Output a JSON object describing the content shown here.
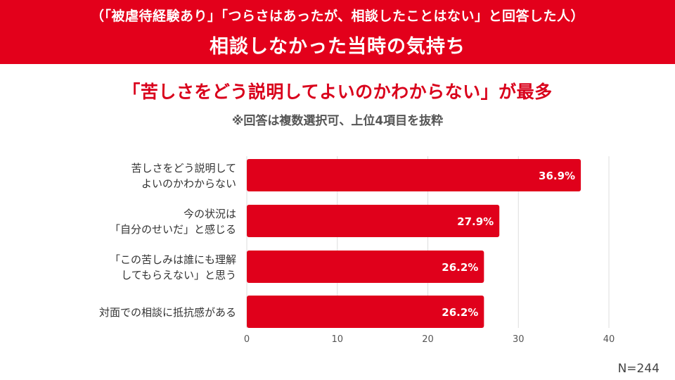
{
  "header": {
    "subtitle": "（「被虐待経験あり」「つらさはあったが、相談したことはない」と回答した人）",
    "title": "相談しなかった当時の気持ち"
  },
  "headline": "「苦しさをどう説明してよいのかわからない」が最多",
  "note": "※回答は複数選択可、上位4項目を抜粋",
  "sample_size": "N=244",
  "colors": {
    "header_bg": "#e3001b",
    "bar": "#e0001b",
    "headline": "#d9001b"
  },
  "chart_data": {
    "type": "bar",
    "orientation": "horizontal",
    "categories": [
      [
        "苦しさをどう説明して",
        "よいのかわからない"
      ],
      [
        "今の状況は",
        "「自分のせいだ」と感じる"
      ],
      [
        "「この苦しみは誰にも理解",
        "してもらえない」と思う"
      ],
      [
        "対面での相談に抵抗感がある"
      ]
    ],
    "values": [
      36.9,
      27.9,
      26.2,
      26.2
    ],
    "data_labels": [
      "36.9%",
      "27.9%",
      "26.2%",
      "26.2%"
    ],
    "xlim": [
      0,
      40
    ],
    "xticks": [
      0,
      10,
      20,
      30,
      40
    ],
    "grid": true,
    "legend": "none"
  }
}
